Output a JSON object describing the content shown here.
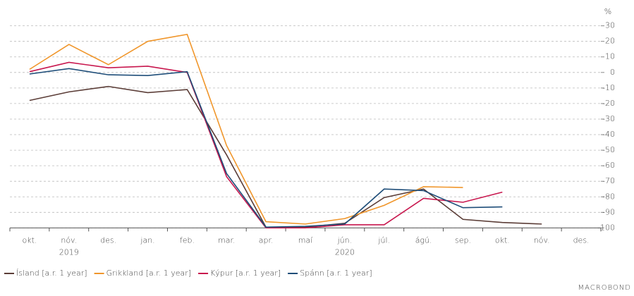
{
  "chart_data": {
    "type": "line",
    "unit_label": "%",
    "categories": [
      "okt.",
      "nóv.",
      "des.",
      "jan.",
      "feb.",
      "mar.",
      "apr.",
      "maí",
      "jún.",
      "júl.",
      "ágú.",
      "sep.",
      "okt.",
      "nóv.",
      "des."
    ],
    "category_years": [
      null,
      "2019",
      null,
      null,
      null,
      null,
      null,
      null,
      "2020",
      null,
      null,
      null,
      null,
      null,
      null
    ],
    "series": [
      {
        "name": "Ísland [a.r. 1 year]",
        "color": "#5b3d37",
        "values": [
          -18,
          -12.5,
          -9,
          -13,
          -11,
          -53,
          -99.5,
          -99.5,
          -97,
          -80.5,
          -75,
          -94.5,
          -96.5,
          -97.5,
          null
        ]
      },
      {
        "name": "Grikkland [a.r. 1 year]",
        "color": "#f0962b",
        "values": [
          2,
          18,
          5,
          20,
          24.5,
          -47,
          -96,
          -97.5,
          -94,
          -85.5,
          -73.5,
          -74,
          null,
          null,
          null
        ]
      },
      {
        "name": "Kýpur [a.r. 1 year]",
        "color": "#c8174e",
        "values": [
          0.5,
          6.5,
          3,
          4,
          0,
          -67,
          -100,
          -100,
          -98,
          -98,
          -81,
          -83.5,
          -77,
          null,
          null
        ]
      },
      {
        "name": "Spánn [a.r. 1 year]",
        "color": "#1f4e79",
        "values": [
          -1,
          2.5,
          -1.5,
          -2,
          0.5,
          -65,
          -99.5,
          -99,
          -97.5,
          -75,
          -76,
          -87,
          -86.5,
          null,
          null
        ]
      }
    ],
    "ylim": [
      -103,
      33
    ],
    "yticks": [
      30,
      20,
      10,
      0,
      -10,
      -20,
      -30,
      -40,
      -50,
      -60,
      -70,
      -80,
      -90,
      -100
    ],
    "grid": true,
    "legend": "bottom",
    "watermark": "MACROBOND"
  }
}
